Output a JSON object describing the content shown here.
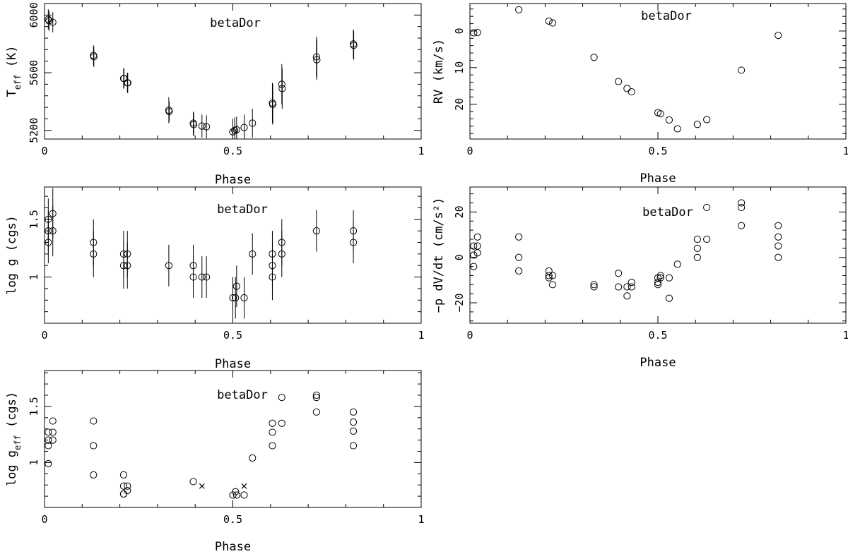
{
  "chart_data": [
    {
      "type": "scatter",
      "id": "teff",
      "annotation": "betaDor",
      "xlabel": "Phase",
      "ylabel": "T",
      "ylabel_sub": "eff",
      "ylabel_tail": " (K)",
      "xlim": [
        0,
        1
      ],
      "ylim": [
        5140,
        6080
      ],
      "xticks": [
        "0",
        "0.5",
        "1"
      ],
      "yticks": [
        "5200",
        "5600",
        "6000"
      ],
      "points": [
        {
          "x": 0.01,
          "y": 5970,
          "err": 70
        },
        {
          "x": 0.012,
          "y": 5960,
          "err": 70
        },
        {
          "x": 0.022,
          "y": 5950,
          "err": 70
        },
        {
          "x": 0.13,
          "y": 5720,
          "err": 70
        },
        {
          "x": 0.131,
          "y": 5710,
          "err": 70
        },
        {
          "x": 0.21,
          "y": 5560,
          "err": 70
        },
        {
          "x": 0.211,
          "y": 5560,
          "err": 70
        },
        {
          "x": 0.22,
          "y": 5530,
          "err": 70
        },
        {
          "x": 0.221,
          "y": 5530,
          "err": 70
        },
        {
          "x": 0.33,
          "y": 5340,
          "err": 90
        },
        {
          "x": 0.331,
          "y": 5330,
          "err": 70
        },
        {
          "x": 0.395,
          "y": 5250,
          "err": 80
        },
        {
          "x": 0.396,
          "y": 5240,
          "err": 80
        },
        {
          "x": 0.418,
          "y": 5230,
          "err": 80
        },
        {
          "x": 0.43,
          "y": 5225,
          "err": 80
        },
        {
          "x": 0.5,
          "y": 5190,
          "err": 90
        },
        {
          "x": 0.505,
          "y": 5200,
          "err": 90
        },
        {
          "x": 0.51,
          "y": 5205,
          "err": 90
        },
        {
          "x": 0.53,
          "y": 5220,
          "err": 90
        },
        {
          "x": 0.552,
          "y": 5250,
          "err": 100
        },
        {
          "x": 0.605,
          "y": 5390,
          "err": 140
        },
        {
          "x": 0.606,
          "y": 5380,
          "err": 140
        },
        {
          "x": 0.63,
          "y": 5520,
          "err": 140
        },
        {
          "x": 0.631,
          "y": 5490,
          "err": 140
        },
        {
          "x": 0.722,
          "y": 5710,
          "err": 140
        },
        {
          "x": 0.723,
          "y": 5690,
          "err": 140
        },
        {
          "x": 0.82,
          "y": 5800,
          "err": 100
        },
        {
          "x": 0.821,
          "y": 5790,
          "err": 100
        }
      ]
    },
    {
      "type": "scatter",
      "id": "rv",
      "annotation": "betaDor",
      "xlabel": "Phase",
      "ylabel": "RV (km/s)",
      "xlim": [
        0,
        1
      ],
      "ylim": [
        -7.5,
        29.5
      ],
      "y_inverted": true,
      "xticks": [
        "0",
        "0.5",
        "1"
      ],
      "yticks": [
        "0",
        "10",
        "20"
      ],
      "points": [
        {
          "x": 0.01,
          "y": 0.5
        },
        {
          "x": 0.02,
          "y": 0.4
        },
        {
          "x": 0.13,
          "y": -5.8
        },
        {
          "x": 0.21,
          "y": -2.7
        },
        {
          "x": 0.22,
          "y": -2.2
        },
        {
          "x": 0.33,
          "y": 7.2
        },
        {
          "x": 0.395,
          "y": 13.8
        },
        {
          "x": 0.418,
          "y": 15.7
        },
        {
          "x": 0.43,
          "y": 16.6
        },
        {
          "x": 0.5,
          "y": 22.3
        },
        {
          "x": 0.507,
          "y": 22.6
        },
        {
          "x": 0.53,
          "y": 24.3
        },
        {
          "x": 0.552,
          "y": 26.7
        },
        {
          "x": 0.605,
          "y": 25.5
        },
        {
          "x": 0.63,
          "y": 24.2
        },
        {
          "x": 0.722,
          "y": 10.7
        },
        {
          "x": 0.82,
          "y": 1.2
        }
      ]
    },
    {
      "type": "scatter",
      "id": "logg",
      "annotation": "betaDor",
      "xlabel": "Phase",
      "ylabel": "log g (cgs)",
      "xlim": [
        0,
        1
      ],
      "ylim": [
        0.6,
        1.78
      ],
      "xticks": [
        "0",
        "0.5",
        "1"
      ],
      "yticks": [
        "1",
        "1.5"
      ],
      "points": [
        {
          "x": 0.01,
          "y": 1.5,
          "err": 0.18
        },
        {
          "x": 0.01,
          "y": 1.4,
          "err": 0.18
        },
        {
          "x": 0.01,
          "y": 1.3,
          "err": 0.18
        },
        {
          "x": 0.022,
          "y": 1.4,
          "err": 0.22
        },
        {
          "x": 0.022,
          "y": 1.55,
          "err": 0.22
        },
        {
          "x": 0.13,
          "y": 1.3,
          "err": 0.2
        },
        {
          "x": 0.13,
          "y": 1.2,
          "err": 0.2
        },
        {
          "x": 0.21,
          "y": 1.2,
          "err": 0.2
        },
        {
          "x": 0.21,
          "y": 1.1,
          "err": 0.2
        },
        {
          "x": 0.22,
          "y": 1.2,
          "err": 0.2
        },
        {
          "x": 0.22,
          "y": 1.1,
          "err": 0.2
        },
        {
          "x": 0.33,
          "y": 1.1,
          "err": 0.18
        },
        {
          "x": 0.395,
          "y": 1.1,
          "err": 0.18
        },
        {
          "x": 0.395,
          "y": 1.0,
          "err": 0.18
        },
        {
          "x": 0.418,
          "y": 1.0,
          "err": 0.18
        },
        {
          "x": 0.43,
          "y": 1.0,
          "err": 0.18
        },
        {
          "x": 0.5,
          "y": 0.82,
          "err": 0.18
        },
        {
          "x": 0.507,
          "y": 0.82,
          "err": 0.18
        },
        {
          "x": 0.51,
          "y": 0.92,
          "err": 0.18
        },
        {
          "x": 0.53,
          "y": 0.82,
          "err": 0.18
        },
        {
          "x": 0.552,
          "y": 1.2,
          "err": 0.18
        },
        {
          "x": 0.605,
          "y": 1.2,
          "err": 0.2
        },
        {
          "x": 0.605,
          "y": 1.1,
          "err": 0.2
        },
        {
          "x": 0.605,
          "y": 1.0,
          "err": 0.2
        },
        {
          "x": 0.63,
          "y": 1.3,
          "err": 0.2
        },
        {
          "x": 0.63,
          "y": 1.2,
          "err": 0.2
        },
        {
          "x": 0.722,
          "y": 1.4,
          "err": 0.18
        },
        {
          "x": 0.82,
          "y": 1.4,
          "err": 0.18
        },
        {
          "x": 0.82,
          "y": 1.3,
          "err": 0.18
        }
      ]
    },
    {
      "type": "scatter",
      "id": "pdvdt",
      "annotation": "betaDor",
      "xlabel": "Phase",
      "ylabel": "−p dV/dt (cm/s²)",
      "xlim": [
        0,
        1
      ],
      "ylim": [
        -29,
        31
      ],
      "xticks": [
        "0",
        "0.5",
        "1"
      ],
      "yticks": [
        "−20",
        "0",
        "20"
      ],
      "points": [
        {
          "x": 0.01,
          "y": 5
        },
        {
          "x": 0.01,
          "y": 1
        },
        {
          "x": 0.01,
          "y": -4
        },
        {
          "x": 0.02,
          "y": 9
        },
        {
          "x": 0.02,
          "y": 5
        },
        {
          "x": 0.02,
          "y": 2
        },
        {
          "x": 0.13,
          "y": 9
        },
        {
          "x": 0.13,
          "y": 0
        },
        {
          "x": 0.13,
          "y": -6
        },
        {
          "x": 0.21,
          "y": -6
        },
        {
          "x": 0.21,
          "y": -8
        },
        {
          "x": 0.21,
          "y": -9
        },
        {
          "x": 0.22,
          "y": -8
        },
        {
          "x": 0.22,
          "y": -12
        },
        {
          "x": 0.33,
          "y": -12
        },
        {
          "x": 0.33,
          "y": -13
        },
        {
          "x": 0.395,
          "y": -7
        },
        {
          "x": 0.395,
          "y": -13
        },
        {
          "x": 0.418,
          "y": -13
        },
        {
          "x": 0.418,
          "y": -17
        },
        {
          "x": 0.43,
          "y": -11
        },
        {
          "x": 0.43,
          "y": -13
        },
        {
          "x": 0.5,
          "y": -9
        },
        {
          "x": 0.5,
          "y": -11
        },
        {
          "x": 0.5,
          "y": -12
        },
        {
          "x": 0.507,
          "y": -8
        },
        {
          "x": 0.507,
          "y": -9
        },
        {
          "x": 0.53,
          "y": -18
        },
        {
          "x": 0.53,
          "y": -9
        },
        {
          "x": 0.552,
          "y": -3
        },
        {
          "x": 0.605,
          "y": 8
        },
        {
          "x": 0.605,
          "y": 4
        },
        {
          "x": 0.605,
          "y": 0
        },
        {
          "x": 0.63,
          "y": 22
        },
        {
          "x": 0.63,
          "y": 8
        },
        {
          "x": 0.722,
          "y": 24
        },
        {
          "x": 0.722,
          "y": 22
        },
        {
          "x": 0.722,
          "y": 14
        },
        {
          "x": 0.82,
          "y": 14
        },
        {
          "x": 0.82,
          "y": 9
        },
        {
          "x": 0.82,
          "y": 5
        },
        {
          "x": 0.82,
          "y": 0
        }
      ]
    },
    {
      "type": "scatter",
      "id": "loggeff",
      "annotation": "betaDor",
      "xlabel": "Phase",
      "ylabel": "log g",
      "ylabel_sub": "eff",
      "ylabel_tail": " (cgs)",
      "xlim": [
        0,
        1
      ],
      "ylim": [
        0.6,
        1.82
      ],
      "xticks": [
        "0",
        "0.5",
        "1"
      ],
      "yticks": [
        "1",
        "1.5"
      ],
      "points": [
        {
          "x": 0.01,
          "y": 1.27
        },
        {
          "x": 0.01,
          "y": 1.2
        },
        {
          "x": 0.01,
          "y": 1.15
        },
        {
          "x": 0.01,
          "y": 0.99
        },
        {
          "x": 0.022,
          "y": 1.37
        },
        {
          "x": 0.022,
          "y": 1.27
        },
        {
          "x": 0.022,
          "y": 1.2
        },
        {
          "x": 0.13,
          "y": 1.37
        },
        {
          "x": 0.13,
          "y": 1.15
        },
        {
          "x": 0.13,
          "y": 0.89
        },
        {
          "x": 0.21,
          "y": 0.89
        },
        {
          "x": 0.21,
          "y": 0.79
        },
        {
          "x": 0.21,
          "y": 0.72
        },
        {
          "x": 0.21,
          "y": 0.72
        },
        {
          "x": 0.22,
          "y": 0.79
        },
        {
          "x": 0.22,
          "y": 0.75
        },
        {
          "x": 0.395,
          "y": 0.83
        },
        {
          "x": 0.5,
          "y": 0.71
        },
        {
          "x": 0.507,
          "y": 0.74
        },
        {
          "x": 0.51,
          "y": 0.71
        },
        {
          "x": 0.53,
          "y": 0.71
        },
        {
          "x": 0.552,
          "y": 1.04
        },
        {
          "x": 0.605,
          "y": 1.35
        },
        {
          "x": 0.605,
          "y": 1.27
        },
        {
          "x": 0.605,
          "y": 1.15
        },
        {
          "x": 0.63,
          "y": 1.58
        },
        {
          "x": 0.63,
          "y": 1.35
        },
        {
          "x": 0.722,
          "y": 1.6
        },
        {
          "x": 0.722,
          "y": 1.58
        },
        {
          "x": 0.722,
          "y": 1.45
        },
        {
          "x": 0.82,
          "y": 1.45
        },
        {
          "x": 0.82,
          "y": 1.36
        },
        {
          "x": 0.82,
          "y": 1.28
        },
        {
          "x": 0.82,
          "y": 1.15
        }
      ],
      "cross_points": [
        {
          "x": 0.418,
          "y": 0.79
        },
        {
          "x": 0.53,
          "y": 0.79
        }
      ]
    }
  ]
}
